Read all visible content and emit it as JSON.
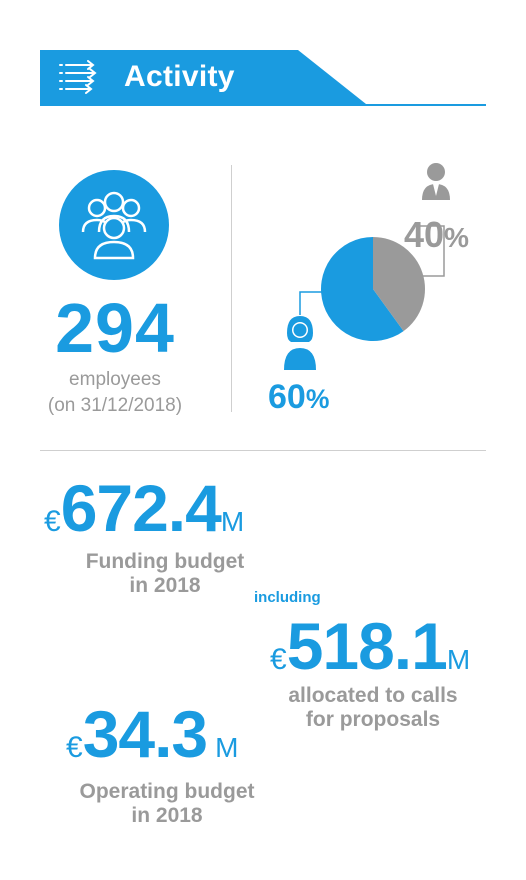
{
  "header": {
    "title": "Activity",
    "icon": "list-arrows-icon"
  },
  "colors": {
    "accent": "#1a9be0",
    "muted": "#9a9a9a",
    "divider": "#cfcfcf"
  },
  "employees": {
    "count": "294",
    "label_line1": "employees",
    "label_line2": "(on 31/12/2018)",
    "icon": "people-group-icon"
  },
  "gender": {
    "men_pct": "40",
    "women_pct": "60",
    "pct_symbol": "%",
    "men_icon": "man-icon",
    "women_icon": "woman-icon"
  },
  "chart_data": {
    "type": "pie",
    "slices": [
      {
        "label": "60%",
        "value": 60,
        "color": "#1a9be0"
      },
      {
        "label": "40%",
        "value": 40,
        "color": "#9a9a9a"
      }
    ]
  },
  "funding": {
    "currency": "€",
    "amount": "672.4",
    "unit": "M",
    "label_line1": "Funding budget",
    "label_line2": "in 2018"
  },
  "calls": {
    "prefix": "including",
    "currency": "€",
    "amount": "518.1",
    "unit": "M",
    "label_line1": "allocated to calls",
    "label_line2": "for proposals"
  },
  "operating": {
    "currency": "€",
    "amount": "34.3",
    "unit": "M",
    "label_line1": "Operating budget",
    "label_line2": "in 2018"
  }
}
